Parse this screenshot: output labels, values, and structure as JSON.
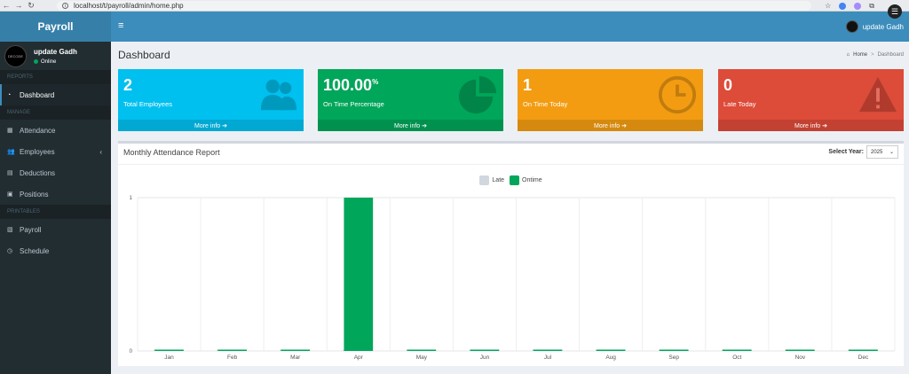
{
  "browser": {
    "url": "localhost/t/payroll/admin/home.php"
  },
  "header": {
    "logo": "Payroll",
    "toggle": "≡",
    "user_name": "update Gadh"
  },
  "sidebar": {
    "user": {
      "name": "update Gadh",
      "status": "Online",
      "avatar_text": "DECODE"
    },
    "sections": [
      {
        "title": "REPORTS",
        "items": [
          {
            "label": "Dashboard",
            "icon": "dashboard-icon",
            "active": true
          }
        ]
      },
      {
        "title": "MANAGE",
        "items": [
          {
            "label": "Attendance",
            "icon": "calendar-icon"
          },
          {
            "label": "Employees",
            "icon": "users-icon",
            "arrow": "‹"
          },
          {
            "label": "Deductions",
            "icon": "file-icon"
          },
          {
            "label": "Positions",
            "icon": "briefcase-icon"
          }
        ]
      },
      {
        "title": "PRINTABLES",
        "items": [
          {
            "label": "Payroll",
            "icon": "money-icon"
          },
          {
            "label": "Schedule",
            "icon": "clock-icon"
          }
        ]
      }
    ]
  },
  "page": {
    "title": "Dashboard",
    "breadcrumb": {
      "home": "Home",
      "current": "Dashboard"
    }
  },
  "stats": [
    {
      "value": "2",
      "sup": "",
      "label": "Total Employees",
      "more": "More info ➔",
      "color": "#00c0ef",
      "icon": "users-icon"
    },
    {
      "value": "100.00",
      "sup": "%",
      "label": "On Time Percentage",
      "more": "More info ➔",
      "color": "#00a65a",
      "icon": "pie-chart-icon"
    },
    {
      "value": "1",
      "sup": "",
      "label": "On Time Today",
      "more": "More info ➔",
      "color": "#f39c12",
      "icon": "clock-icon"
    },
    {
      "value": "0",
      "sup": "",
      "label": "Late Today",
      "more": "More info ➔",
      "color": "#dd4b39",
      "icon": "warning-icon"
    }
  ],
  "report": {
    "title": "Monthly Attendance Report",
    "year_label": "Select Year:",
    "year_value": "2025"
  },
  "chart_data": {
    "type": "bar",
    "categories": [
      "Jan",
      "Feb",
      "Mar",
      "Apr",
      "May",
      "Jun",
      "Jul",
      "Aug",
      "Sep",
      "Oct",
      "Nov",
      "Dec"
    ],
    "series": [
      {
        "name": "Late",
        "color": "#d2d6de",
        "values": [
          0,
          0,
          0,
          0,
          0,
          0,
          0,
          0,
          0,
          0,
          0,
          0
        ]
      },
      {
        "name": "Ontime",
        "color": "#00a65a",
        "values": [
          0,
          0,
          0,
          1,
          0,
          0,
          0,
          0,
          0,
          0,
          0,
          0
        ]
      }
    ],
    "ylim": [
      0,
      1
    ],
    "yticks": [
      "0",
      "1"
    ],
    "legend": "top-center",
    "grid": true
  }
}
